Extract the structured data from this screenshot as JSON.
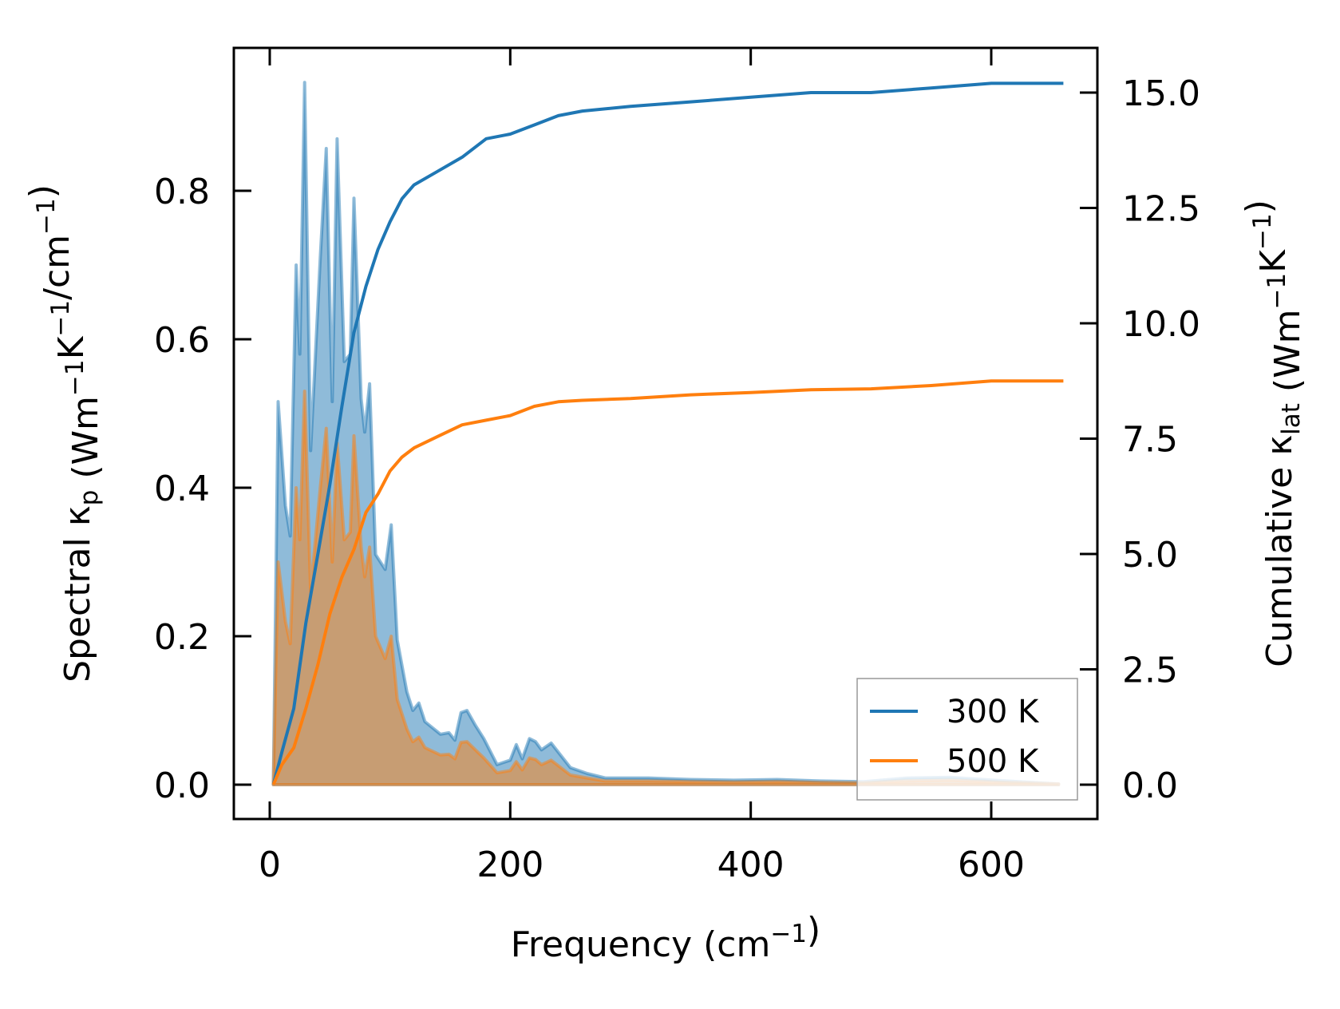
{
  "chart_data": {
    "type": "line",
    "xlabel": "Frequency (cm^{−1})",
    "ylabel_left": "Spectral κ_{p} (Wm^{−1}K^{−1}/cm^{−1})",
    "ylabel_right": "Cumulative κ_{lat} (Wm^{−1}K^{−1})",
    "xlim": [
      -30,
      690
    ],
    "ylim_left": [
      -0.047,
      1.0
    ],
    "ylim_right": [
      -0.75,
      16.8
    ],
    "xticks": [
      "0",
      "200",
      "400",
      "600"
    ],
    "xtick_values": [
      0,
      200,
      400,
      600
    ],
    "yticks_left": [
      "0.0",
      "0.2",
      "0.4",
      "0.6",
      "0.8"
    ],
    "ytick_left_values": [
      0,
      0.2,
      0.4,
      0.6,
      0.8
    ],
    "yticks_right": [
      "0.0",
      "2.5",
      "5.0",
      "7.5",
      "10.0",
      "12.5",
      "15.0"
    ],
    "ytick_right_values": [
      0,
      2.5,
      5,
      7.5,
      10,
      12.5,
      15
    ],
    "legend": {
      "position": "lower-right",
      "entries": [
        "300 K",
        "500 K"
      ]
    },
    "colors": {
      "300 K": "#1f77b4",
      "500 K": "#ff7f0e"
    },
    "spectral_x": [
      3,
      7,
      13,
      17,
      22,
      25,
      29,
      34,
      42,
      47,
      52,
      56,
      62,
      67,
      70,
      76,
      79,
      83,
      88,
      96,
      101,
      106,
      114,
      119,
      124,
      129,
      142,
      149,
      154,
      159,
      164,
      171,
      178,
      189,
      200,
      205,
      210,
      216,
      221,
      226,
      234,
      250,
      264,
      279,
      315,
      350,
      386,
      422,
      458,
      494,
      530,
      566,
      602,
      656
    ],
    "spectral_series": [
      {
        "name": "300 K",
        "values": [
          0,
          0.516,
          0.376,
          0.335,
          0.7,
          0.58,
          0.946,
          0.45,
          0.71,
          0.857,
          0.516,
          0.87,
          0.57,
          0.58,
          0.79,
          0.52,
          0.475,
          0.54,
          0.31,
          0.29,
          0.35,
          0.195,
          0.125,
          0.1,
          0.11,
          0.085,
          0.068,
          0.07,
          0.06,
          0.097,
          0.1,
          0.08,
          0.062,
          0.027,
          0.033,
          0.054,
          0.035,
          0.062,
          0.058,
          0.047,
          0.056,
          0.023,
          0.015,
          0.009,
          0.009,
          0.007,
          0.006,
          0.007,
          0.005,
          0.004,
          0.009,
          0.01,
          0.006,
          0.001
        ]
      },
      {
        "name": "500 K",
        "values": [
          0,
          0.3,
          0.22,
          0.19,
          0.4,
          0.33,
          0.53,
          0.26,
          0.4,
          0.48,
          0.3,
          0.46,
          0.33,
          0.34,
          0.47,
          0.32,
          0.28,
          0.32,
          0.2,
          0.17,
          0.2,
          0.115,
          0.075,
          0.058,
          0.064,
          0.05,
          0.04,
          0.041,
          0.035,
          0.057,
          0.058,
          0.047,
          0.036,
          0.016,
          0.019,
          0.031,
          0.02,
          0.036,
          0.034,
          0.027,
          0.033,
          0.013,
          0.009,
          0.005,
          0.005,
          0.004,
          0.0035,
          0.004,
          0.003,
          0.0025,
          0.005,
          0.006,
          0.0035,
          0.001
        ]
      }
    ],
    "cumulative_x": [
      3,
      10,
      20,
      30,
      40,
      50,
      60,
      70,
      80,
      90,
      100,
      110,
      120,
      140,
      160,
      180,
      200,
      220,
      240,
      260,
      300,
      350,
      400,
      450,
      500,
      550,
      600,
      660
    ],
    "cumulative_series": [
      {
        "name": "300 K",
        "values": [
          0,
          0.7,
          1.65,
          3.5,
          5.0,
          6.5,
          8.2,
          9.8,
          10.8,
          11.6,
          12.2,
          12.7,
          13.0,
          13.3,
          13.6,
          14.0,
          14.1,
          14.3,
          14.5,
          14.6,
          14.7,
          14.8,
          14.9,
          15.0,
          15.0,
          15.1,
          15.2,
          15.2
        ]
      },
      {
        "name": "500 K",
        "values": [
          0,
          0.43,
          0.8,
          1.65,
          2.6,
          3.7,
          4.5,
          5.1,
          5.9,
          6.3,
          6.8,
          7.1,
          7.3,
          7.55,
          7.8,
          7.9,
          8.0,
          8.2,
          8.3,
          8.33,
          8.37,
          8.45,
          8.5,
          8.56,
          8.58,
          8.65,
          8.75,
          8.75
        ]
      }
    ]
  }
}
